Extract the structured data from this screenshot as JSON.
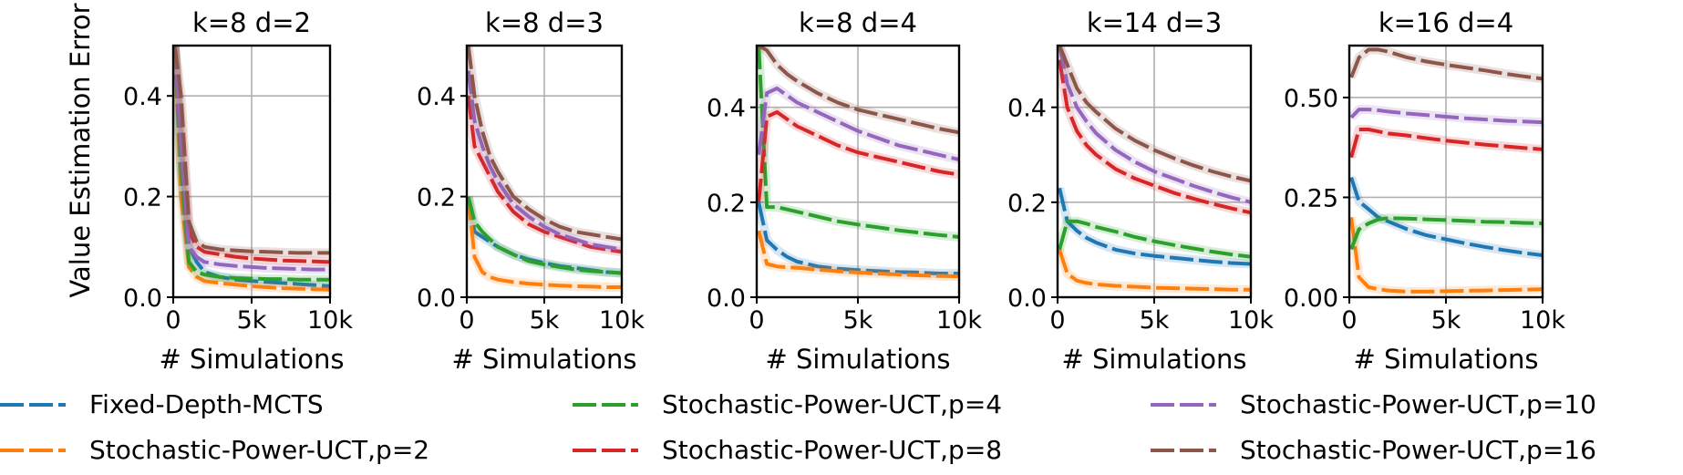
{
  "figure": {
    "ylabel": "Value Estimation Error",
    "xlabel": "# Simulations"
  },
  "colors": {
    "Fixed-Depth-MCTS": "#1f77b4",
    "Stochastic-Power-UCT,p=2": "#ff7f0e",
    "Stochastic-Power-UCT,p=4": "#2ca02c",
    "Stochastic-Power-UCT,p=8": "#d62728",
    "Stochastic-Power-UCT,p=10": "#9467bd",
    "Stochastic-Power-UCT,p=16": "#8c564b"
  },
  "legend": [
    "Fixed-Depth-MCTS",
    "Stochastic-Power-UCT,p=2",
    "Stochastic-Power-UCT,p=4",
    "Stochastic-Power-UCT,p=8",
    "Stochastic-Power-UCT,p=10",
    "Stochastic-Power-UCT,p=16"
  ],
  "chart_data": [
    {
      "type": "line",
      "title": "k=8  d=2",
      "xlabel": "# Simulations",
      "ylabel": "Value Estimation Error",
      "xlim": [
        0,
        10000
      ],
      "ylim": [
        0,
        0.5
      ],
      "xticks": [
        0,
        5000,
        10000
      ],
      "xtick_labels": [
        "0",
        "5k",
        "10k"
      ],
      "yticks": [
        0.0,
        0.2,
        0.4
      ],
      "ytick_labels": [
        "0.0",
        "0.2",
        "0.4"
      ],
      "grid": true,
      "x": [
        100,
        500,
        1000,
        1500,
        2000,
        3000,
        4000,
        5000,
        6000,
        7000,
        8000,
        9000,
        10000
      ],
      "series": [
        {
          "name": "Fixed-Depth-MCTS",
          "values": [
            0.5,
            0.25,
            0.1,
            0.07,
            0.05,
            0.04,
            0.035,
            0.032,
            0.03,
            0.028,
            0.026,
            0.024,
            0.022
          ]
        },
        {
          "name": "Stochastic-Power-UCT,p=2",
          "values": [
            0.5,
            0.2,
            0.06,
            0.04,
            0.032,
            0.028,
            0.025,
            0.022,
            0.02,
            0.018,
            0.017,
            0.016,
            0.015
          ]
        },
        {
          "name": "Stochastic-Power-UCT,p=4",
          "values": [
            0.5,
            0.25,
            0.07,
            0.05,
            0.045,
            0.04,
            0.038,
            0.037,
            0.036,
            0.036,
            0.035,
            0.035,
            0.035
          ]
        },
        {
          "name": "Stochastic-Power-UCT,p=8",
          "values": [
            0.5,
            0.35,
            0.13,
            0.1,
            0.09,
            0.085,
            0.08,
            0.077,
            0.075,
            0.073,
            0.072,
            0.071,
            0.07
          ]
        },
        {
          "name": "Stochastic-Power-UCT,p=10",
          "values": [
            0.5,
            0.3,
            0.1,
            0.08,
            0.07,
            0.065,
            0.062,
            0.06,
            0.058,
            0.057,
            0.056,
            0.055,
            0.055
          ]
        },
        {
          "name": "Stochastic-Power-UCT,p=16",
          "values": [
            0.5,
            0.4,
            0.15,
            0.11,
            0.1,
            0.095,
            0.093,
            0.091,
            0.09,
            0.089,
            0.088,
            0.088,
            0.088
          ]
        }
      ]
    },
    {
      "type": "line",
      "title": "k=8  d=3",
      "xlabel": "# Simulations",
      "ylabel": "",
      "xlim": [
        0,
        10000
      ],
      "ylim": [
        0,
        0.5
      ],
      "xticks": [
        0,
        5000,
        10000
      ],
      "xtick_labels": [
        "0",
        "5k",
        "10k"
      ],
      "yticks": [
        0.0,
        0.2,
        0.4
      ],
      "ytick_labels": [
        "0.0",
        "0.2",
        "0.4"
      ],
      "grid": true,
      "x": [
        100,
        500,
        1000,
        1500,
        2000,
        3000,
        4000,
        5000,
        6000,
        7000,
        8000,
        9000,
        10000
      ],
      "series": [
        {
          "name": "Fixed-Depth-MCTS",
          "values": [
            0.2,
            0.13,
            0.12,
            0.11,
            0.1,
            0.085,
            0.075,
            0.068,
            0.062,
            0.058,
            0.054,
            0.05,
            0.048
          ]
        },
        {
          "name": "Stochastic-Power-UCT,p=2",
          "values": [
            0.2,
            0.08,
            0.05,
            0.04,
            0.035,
            0.03,
            0.027,
            0.025,
            0.023,
            0.022,
            0.021,
            0.02,
            0.02
          ]
        },
        {
          "name": "Stochastic-Power-UCT,p=4",
          "values": [
            0.2,
            0.15,
            0.13,
            0.115,
            0.1,
            0.085,
            0.072,
            0.065,
            0.06,
            0.055,
            0.052,
            0.05,
            0.048
          ]
        },
        {
          "name": "Stochastic-Power-UCT,p=8",
          "values": [
            0.4,
            0.3,
            0.27,
            0.24,
            0.21,
            0.17,
            0.145,
            0.13,
            0.12,
            0.11,
            0.1,
            0.095,
            0.09
          ]
        },
        {
          "name": "Stochastic-Power-UCT,p=10",
          "values": [
            0.45,
            0.35,
            0.3,
            0.26,
            0.23,
            0.185,
            0.16,
            0.14,
            0.125,
            0.115,
            0.105,
            0.1,
            0.095
          ]
        },
        {
          "name": "Stochastic-Power-UCT,p=16",
          "values": [
            0.5,
            0.4,
            0.33,
            0.28,
            0.25,
            0.2,
            0.175,
            0.155,
            0.14,
            0.13,
            0.125,
            0.12,
            0.115
          ]
        }
      ]
    },
    {
      "type": "line",
      "title": "k=8  d=4",
      "xlabel": "# Simulations",
      "ylabel": "",
      "xlim": [
        0,
        10000
      ],
      "ylim": [
        0,
        0.53
      ],
      "xticks": [
        0,
        5000,
        10000
      ],
      "xtick_labels": [
        "0",
        "5k",
        "10k"
      ],
      "yticks": [
        0.0,
        0.2,
        0.4
      ],
      "ytick_labels": [
        "0.0",
        "0.2",
        "0.4"
      ],
      "grid": true,
      "x": [
        100,
        500,
        1000,
        1500,
        2000,
        3000,
        4000,
        5000,
        6000,
        7000,
        8000,
        9000,
        10000
      ],
      "series": [
        {
          "name": "Fixed-Depth-MCTS",
          "values": [
            0.2,
            0.12,
            0.1,
            0.085,
            0.075,
            0.065,
            0.06,
            0.057,
            0.055,
            0.053,
            0.052,
            0.05,
            0.05
          ]
        },
        {
          "name": "Stochastic-Power-UCT,p=2",
          "values": [
            0.14,
            0.07,
            0.065,
            0.063,
            0.062,
            0.058,
            0.055,
            0.052,
            0.05,
            0.048,
            0.046,
            0.045,
            0.044
          ]
        },
        {
          "name": "Stochastic-Power-UCT,p=4",
          "values": [
            0.53,
            0.19,
            0.19,
            0.185,
            0.18,
            0.17,
            0.16,
            0.153,
            0.147,
            0.141,
            0.136,
            0.131,
            0.127
          ]
        },
        {
          "name": "Stochastic-Power-UCT,p=8",
          "values": [
            0.2,
            0.38,
            0.39,
            0.375,
            0.36,
            0.34,
            0.32,
            0.305,
            0.295,
            0.285,
            0.275,
            0.265,
            0.258
          ]
        },
        {
          "name": "Stochastic-Power-UCT,p=10",
          "values": [
            0.3,
            0.43,
            0.44,
            0.425,
            0.41,
            0.39,
            0.37,
            0.35,
            0.335,
            0.32,
            0.31,
            0.3,
            0.29
          ]
        },
        {
          "name": "Stochastic-Power-UCT,p=16",
          "values": [
            0.53,
            0.52,
            0.49,
            0.47,
            0.455,
            0.43,
            0.41,
            0.395,
            0.385,
            0.375,
            0.365,
            0.355,
            0.347
          ]
        }
      ]
    },
    {
      "type": "line",
      "title": "k=14  d=3",
      "xlabel": "# Simulations",
      "ylabel": "",
      "xlim": [
        0,
        10000
      ],
      "ylim": [
        0,
        0.53
      ],
      "xticks": [
        0,
        5000,
        10000
      ],
      "xtick_labels": [
        "0",
        "5k",
        "10k"
      ],
      "yticks": [
        0.0,
        0.2,
        0.4
      ],
      "ytick_labels": [
        "0.0",
        "0.2",
        "0.4"
      ],
      "grid": true,
      "x": [
        100,
        500,
        1000,
        1500,
        2000,
        3000,
        4000,
        5000,
        6000,
        7000,
        8000,
        9000,
        10000
      ],
      "series": [
        {
          "name": "Fixed-Depth-MCTS",
          "values": [
            0.23,
            0.16,
            0.14,
            0.125,
            0.115,
            0.1,
            0.092,
            0.087,
            0.083,
            0.079,
            0.075,
            0.072,
            0.07
          ]
        },
        {
          "name": "Stochastic-Power-UCT,p=2",
          "values": [
            0.1,
            0.05,
            0.035,
            0.03,
            0.027,
            0.024,
            0.022,
            0.02,
            0.019,
            0.018,
            0.017,
            0.016,
            0.016
          ]
        },
        {
          "name": "Stochastic-Power-UCT,p=4",
          "values": [
            0.1,
            0.16,
            0.16,
            0.155,
            0.148,
            0.138,
            0.127,
            0.118,
            0.11,
            0.103,
            0.096,
            0.09,
            0.085
          ]
        },
        {
          "name": "Stochastic-Power-UCT,p=8",
          "values": [
            0.5,
            0.4,
            0.35,
            0.32,
            0.3,
            0.27,
            0.25,
            0.235,
            0.22,
            0.208,
            0.197,
            0.187,
            0.178
          ]
        },
        {
          "name": "Stochastic-Power-UCT,p=10",
          "values": [
            0.53,
            0.45,
            0.4,
            0.37,
            0.345,
            0.31,
            0.285,
            0.265,
            0.25,
            0.235,
            0.222,
            0.21,
            0.2
          ]
        },
        {
          "name": "Stochastic-Power-UCT,p=16",
          "values": [
            0.53,
            0.49,
            0.44,
            0.41,
            0.39,
            0.355,
            0.33,
            0.31,
            0.293,
            0.278,
            0.265,
            0.254,
            0.245
          ]
        }
      ]
    },
    {
      "type": "line",
      "title": "k=16  d=4",
      "xlabel": "# Simulations",
      "ylabel": "",
      "xlim": [
        0,
        10000
      ],
      "ylim": [
        0,
        0.63
      ],
      "xticks": [
        0,
        5000,
        10000
      ],
      "xtick_labels": [
        "0",
        "5k",
        "10k"
      ],
      "yticks": [
        0.0,
        0.25,
        0.5
      ],
      "ytick_labels": [
        "0.00",
        "0.25",
        "0.50"
      ],
      "grid": true,
      "x": [
        100,
        500,
        1000,
        1500,
        2000,
        3000,
        4000,
        5000,
        6000,
        7000,
        8000,
        9000,
        10000
      ],
      "series": [
        {
          "name": "Fixed-Depth-MCTS",
          "values": [
            0.3,
            0.24,
            0.22,
            0.2,
            0.19,
            0.17,
            0.155,
            0.145,
            0.135,
            0.126,
            0.118,
            0.111,
            0.105
          ]
        },
        {
          "name": "Stochastic-Power-UCT,p=2",
          "values": [
            0.2,
            0.05,
            0.025,
            0.02,
            0.017,
            0.014,
            0.014,
            0.015,
            0.016,
            0.017,
            0.018,
            0.019,
            0.02
          ]
        },
        {
          "name": "Stochastic-Power-UCT,p=4",
          "values": [
            0.12,
            0.17,
            0.185,
            0.195,
            0.198,
            0.197,
            0.195,
            0.193,
            0.191,
            0.189,
            0.188,
            0.186,
            0.185
          ]
        },
        {
          "name": "Stochastic-Power-UCT,p=8",
          "values": [
            0.35,
            0.42,
            0.42,
            0.415,
            0.41,
            0.405,
            0.398,
            0.392,
            0.387,
            0.382,
            0.378,
            0.374,
            0.37
          ]
        },
        {
          "name": "Stochastic-Power-UCT,p=10",
          "values": [
            0.45,
            0.47,
            0.47,
            0.468,
            0.465,
            0.46,
            0.456,
            0.452,
            0.448,
            0.445,
            0.442,
            0.44,
            0.438
          ]
        },
        {
          "name": "Stochastic-Power-UCT,p=16",
          "values": [
            0.55,
            0.6,
            0.62,
            0.62,
            0.615,
            0.6,
            0.59,
            0.582,
            0.575,
            0.568,
            0.56,
            0.553,
            0.547
          ]
        }
      ]
    }
  ]
}
